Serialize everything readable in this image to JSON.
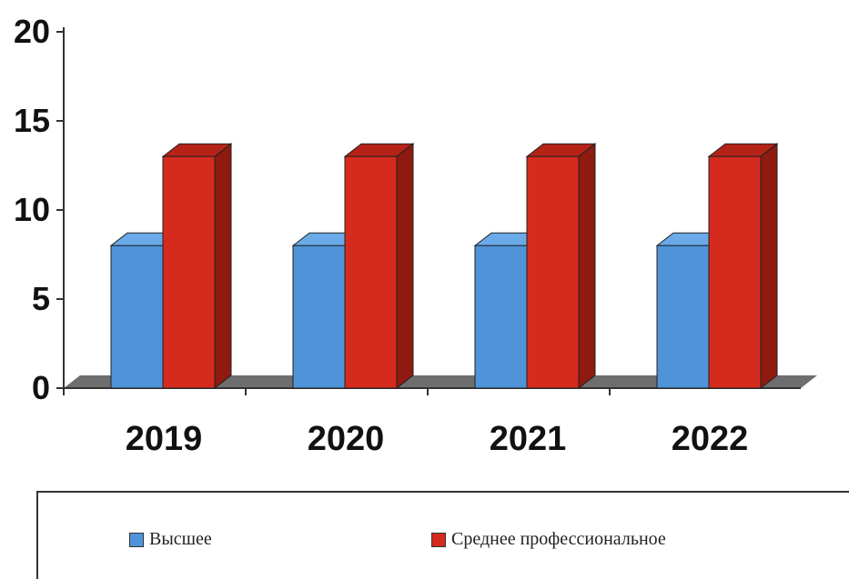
{
  "chart_data": {
    "type": "bar",
    "categories": [
      "2019",
      "2020",
      "2021",
      "2022"
    ],
    "series": [
      {
        "name": "Высшее",
        "values": [
          8,
          8,
          8,
          8
        ],
        "color": "#4f93d9"
      },
      {
        "name": "Среднее профессиональное",
        "values": [
          13,
          13,
          13,
          13
        ],
        "color": "#d42b1e"
      }
    ],
    "ylim": [
      0,
      20
    ],
    "yticks": [
      "0",
      "5",
      "10",
      "15",
      "20"
    ],
    "grid": false,
    "legend_position": "bottom",
    "style": "3d"
  }
}
